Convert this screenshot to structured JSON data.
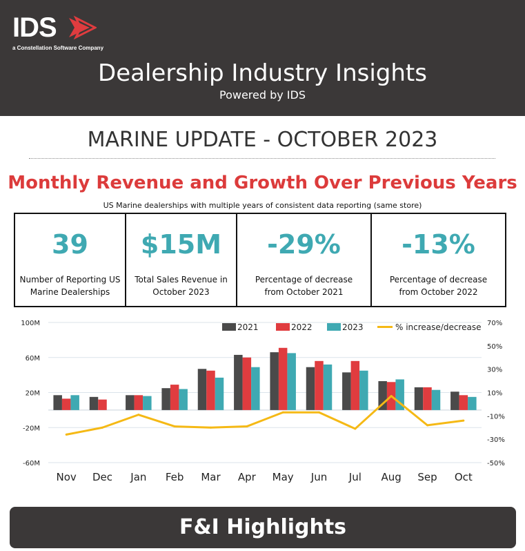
{
  "header": {
    "logo_text": "IDS",
    "logo_tagline": "a Constellation Software Company",
    "title": "Dealership Industry Insights",
    "subtitle": "Powered by IDS"
  },
  "update_title": "MARINE UPDATE - OCTOBER 2023",
  "section_title": "Monthly Revenue and Growth Over Previous Years",
  "note": "US Marine dealerships with multiple years of consistent data reporting (same store)",
  "stats": [
    {
      "value": "39",
      "label": "Number of Reporting US Marine Dealerships"
    },
    {
      "value": "$15M",
      "label": "Total Sales Revenue in October 2023"
    },
    {
      "value": "-29%",
      "label": "Percentage of decrease from October 2021"
    },
    {
      "value": "-13%",
      "label": "Percentage of decrease from October 2022"
    }
  ],
  "colors": {
    "series_2021": "#4a4a4a",
    "series_2022": "#e03c3f",
    "series_2023": "#3fa9b2",
    "line": "#f5b915",
    "accent_red": "#dc3b3b",
    "accent_teal": "#3fa9b2",
    "dark": "#3b3838"
  },
  "chart_data": {
    "type": "bar",
    "categories": [
      "Nov",
      "Dec",
      "Jan",
      "Feb",
      "Mar",
      "Apr",
      "May",
      "Jun",
      "Jul",
      "Aug",
      "Sep",
      "Oct"
    ],
    "series": [
      {
        "name": "2021",
        "values": [
          17,
          15,
          17,
          25,
          47,
          63,
          66,
          49,
          43,
          33,
          26,
          21
        ]
      },
      {
        "name": "2022",
        "values": [
          13,
          12,
          17,
          29,
          45,
          60,
          71,
          56,
          56,
          32,
          26,
          17
        ]
      },
      {
        "name": "2023",
        "values": [
          17,
          0,
          16,
          24,
          37,
          49,
          65,
          52,
          45,
          35,
          23,
          15
        ]
      }
    ],
    "line_series": {
      "name": "% increase/decrease",
      "axis": "right",
      "values": [
        -26,
        -20,
        -9,
        -19,
        -20,
        -19,
        -7,
        -7,
        -21,
        7,
        -18,
        -14
      ]
    },
    "yaxis_left": {
      "ticks": [
        "100M",
        "60M",
        "20M",
        "-20M",
        "-60M"
      ],
      "range": [
        -60,
        100
      ]
    },
    "yaxis_right": {
      "ticks": [
        "70%",
        "50%",
        "30%",
        "10%",
        "-10%",
        "-30%",
        "-50%"
      ],
      "range": [
        -50,
        70
      ]
    },
    "legend": [
      "2021",
      "2022",
      "2023",
      "% increase/decrease"
    ],
    "legend_position": "top-right"
  },
  "banner": "F&I Highlights"
}
